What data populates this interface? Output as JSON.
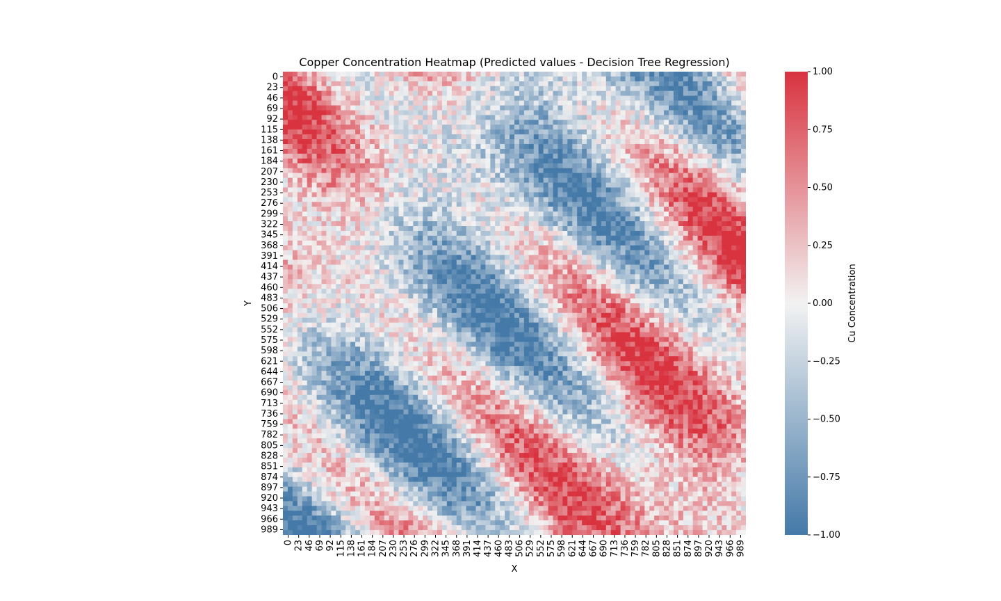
{
  "chart_data": {
    "type": "heatmap",
    "title": "Copper Concentration Heatmap (Predicted values - Decision Tree Regression)",
    "xlabel": "X",
    "ylabel": "Y",
    "colorbar_label": "Cu Concentration",
    "x_range": [
      0,
      999
    ],
    "y_range": [
      0,
      999
    ],
    "value_range": [
      -1.0,
      1.0
    ],
    "colormap": {
      "low": "#4479a8",
      "mid": "#f2f2f2",
      "high": "#d8333f"
    },
    "x_tick_labels": [
      "0",
      "23",
      "46",
      "69",
      "92",
      "115",
      "138",
      "161",
      "184",
      "207",
      "230",
      "253",
      "276",
      "299",
      "322",
      "345",
      "368",
      "391",
      "414",
      "437",
      "460",
      "483",
      "506",
      "529",
      "552",
      "575",
      "598",
      "621",
      "644",
      "667",
      "690",
      "713",
      "736",
      "759",
      "782",
      "805",
      "828",
      "851",
      "874",
      "897",
      "920",
      "943",
      "966",
      "989"
    ],
    "y_tick_labels": [
      "0",
      "23",
      "46",
      "69",
      "92",
      "115",
      "138",
      "161",
      "184",
      "207",
      "230",
      "253",
      "276",
      "299",
      "322",
      "345",
      "368",
      "391",
      "414",
      "437",
      "460",
      "483",
      "506",
      "529",
      "552",
      "575",
      "598",
      "621",
      "644",
      "667",
      "690",
      "713",
      "736",
      "759",
      "782",
      "805",
      "828",
      "851",
      "874",
      "897",
      "920",
      "943",
      "966",
      "989"
    ],
    "colorbar_ticks": [
      {
        "value": 1.0,
        "label": "1.00"
      },
      {
        "value": 0.75,
        "label": "0.75"
      },
      {
        "value": 0.5,
        "label": "0.50"
      },
      {
        "value": 0.25,
        "label": "0.25"
      },
      {
        "value": 0.0,
        "label": "0.00"
      },
      {
        "value": -0.25,
        "label": "−0.25"
      },
      {
        "value": -0.5,
        "label": "−0.50"
      },
      {
        "value": -0.75,
        "label": "−0.75"
      },
      {
        "value": -1.0,
        "label": "−1.00"
      }
    ],
    "grid": false,
    "legend": "colorbar-right"
  }
}
